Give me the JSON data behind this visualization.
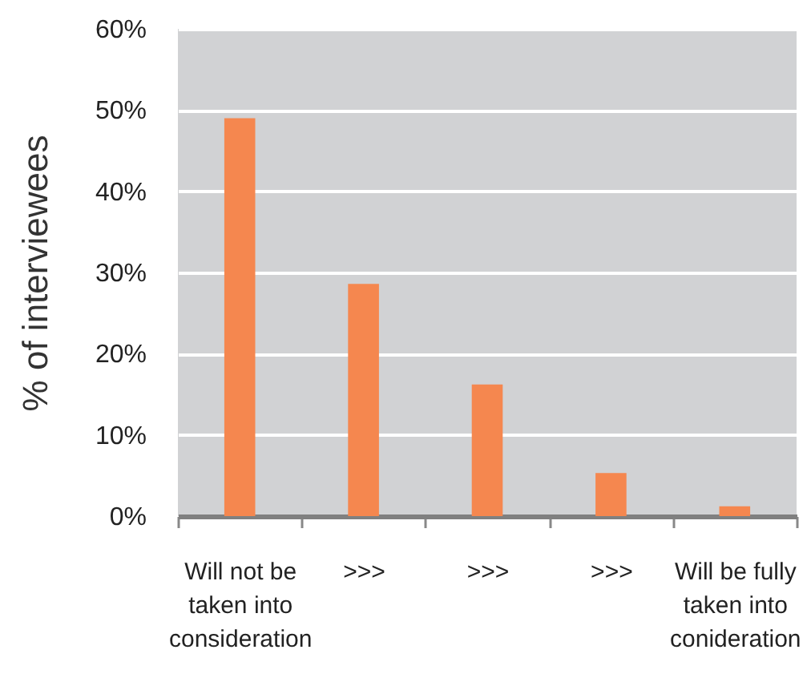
{
  "chart_data": {
    "type": "bar",
    "ylabel": "% of interviewees",
    "categories": [
      "Will not be taken into consideration",
      ">>>",
      ">>>",
      ">>>",
      "Will be fully taken into conideration"
    ],
    "values": [
      49,
      28.6,
      16.2,
      5.3,
      1.2
    ],
    "color": "#f5874f",
    "ylim": [
      0,
      60
    ],
    "yticks": [
      {
        "value": 0,
        "label": "0%"
      },
      {
        "value": 10,
        "label": "10%"
      },
      {
        "value": 20,
        "label": "20%"
      },
      {
        "value": 30,
        "label": "30%"
      },
      {
        "value": 40,
        "label": "40%"
      },
      {
        "value": 50,
        "label": "50%"
      },
      {
        "value": 60,
        "label": "60%"
      }
    ],
    "grid": "y"
  }
}
